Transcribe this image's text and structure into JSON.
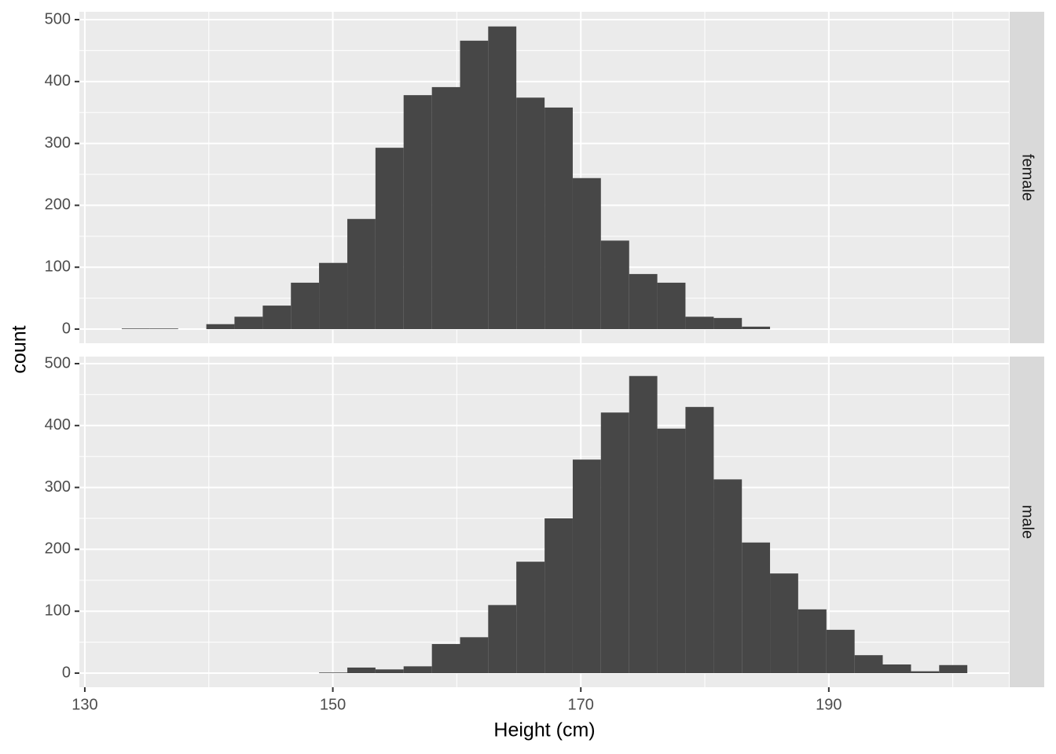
{
  "chart_data": {
    "type": "histogram",
    "xlabel": "Height (cm)",
    "ylabel": "count",
    "color": "#474747",
    "bins": [
      132.98,
      135.25,
      137.53,
      139.8,
      142.07,
      144.35,
      146.62,
      148.89,
      151.17,
      153.44,
      155.71,
      157.99,
      160.26,
      162.53,
      164.8,
      167.08,
      169.35,
      171.62,
      173.9,
      176.17,
      178.44,
      180.72,
      182.99,
      185.26,
      187.53,
      189.81,
      192.08,
      194.35,
      196.63,
      198.9,
      201.17
    ],
    "xlim": [
      129.56,
      204.52
    ],
    "xticks": [
      130,
      150,
      170,
      190
    ],
    "xminor": [
      140,
      160,
      180,
      200
    ],
    "grid": true,
    "facets": [
      {
        "name": "female",
        "ylim": [
          -22.8,
          512.7
        ],
        "yticks": [
          0,
          100,
          200,
          300,
          400,
          500
        ],
        "yminor": [
          50,
          150,
          250,
          350,
          450
        ],
        "counts": [
          1,
          1,
          0,
          8,
          20,
          38,
          75,
          107,
          178,
          293,
          378,
          391,
          466,
          489,
          374,
          358,
          244,
          143,
          89,
          75,
          20,
          18,
          4,
          0,
          0,
          0,
          0,
          0,
          0,
          0
        ]
      },
      {
        "name": "male",
        "ylim": [
          -22.8,
          511.4
        ],
        "yticks": [
          0,
          100,
          200,
          300,
          400,
          500
        ],
        "yminor": [
          50,
          150,
          250,
          350,
          450
        ],
        "counts": [
          0,
          0,
          0,
          0,
          0,
          0,
          0,
          1,
          9,
          6,
          11,
          47,
          58,
          110,
          180,
          250,
          345,
          421,
          480,
          395,
          430,
          313,
          211,
          161,
          103,
          70,
          29,
          14,
          3,
          13
        ]
      }
    ]
  }
}
